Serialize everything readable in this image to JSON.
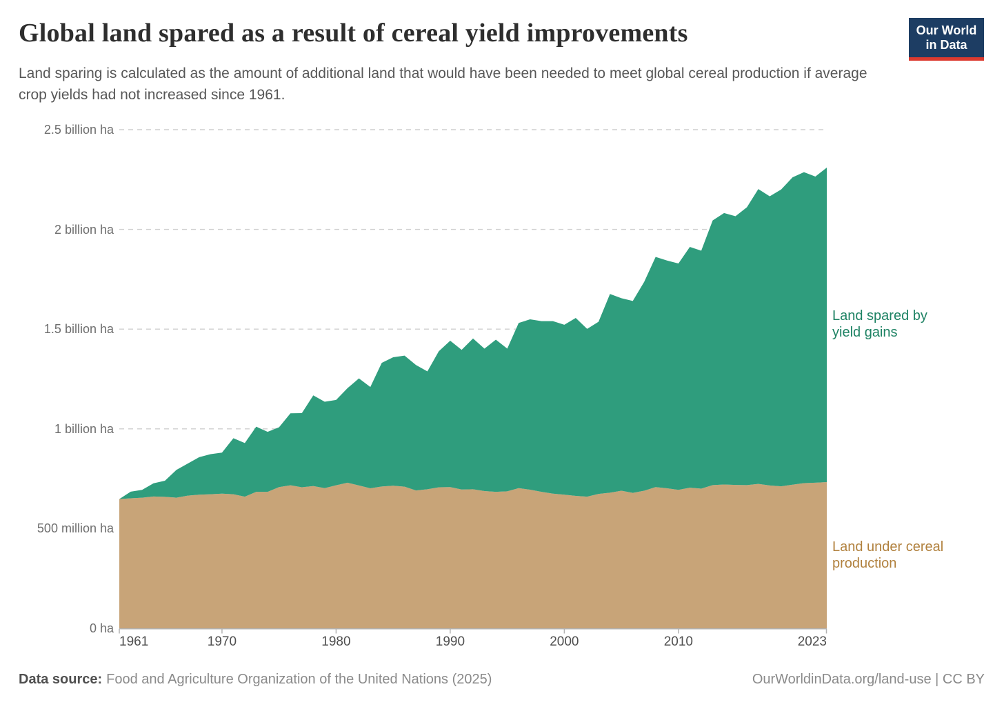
{
  "header": {
    "title": "Global land spared as a result of cereal yield improvements",
    "subtitle": "Land sparing is calculated as the amount of additional land that would have been needed to meet global cereal production if average crop yields had not increased since 1961."
  },
  "logo": {
    "line1": "Our World",
    "line2": "in Data",
    "bg_color": "#1d3d63",
    "bar_color": "#dc3a2f"
  },
  "chart_data": {
    "type": "area",
    "stacked": true,
    "title": "Global land spared as a result of cereal yield improvements",
    "xlabel": "",
    "ylabel": "",
    "unit": "million hectares",
    "ylim": [
      0,
      2500
    ],
    "xlim": [
      1961,
      2023
    ],
    "grid": "horizontal-dashed",
    "legend_position": "right-annotations",
    "x": [
      1961,
      1962,
      1963,
      1964,
      1965,
      1966,
      1967,
      1968,
      1969,
      1970,
      1971,
      1972,
      1973,
      1974,
      1975,
      1976,
      1977,
      1978,
      1979,
      1980,
      1981,
      1982,
      1983,
      1984,
      1985,
      1986,
      1987,
      1988,
      1989,
      1990,
      1991,
      1992,
      1993,
      1994,
      1995,
      1996,
      1997,
      1998,
      1999,
      2000,
      2001,
      2002,
      2003,
      2004,
      2005,
      2006,
      2007,
      2008,
      2009,
      2010,
      2011,
      2012,
      2013,
      2014,
      2015,
      2016,
      2017,
      2018,
      2019,
      2020,
      2021,
      2022,
      2023
    ],
    "series": [
      {
        "name": "Land under cereal production",
        "color": "#c8a478",
        "label_color": "#b1813e",
        "values": [
          648,
          652,
          655,
          661,
          659,
          655,
          665,
          670,
          672,
          675,
          672,
          660,
          684,
          684,
          708,
          717,
          707,
          713,
          703,
          717,
          730,
          716,
          702,
          711,
          715,
          710,
          691,
          697,
          707,
          708,
          696,
          697,
          688,
          684,
          687,
          703,
          695,
          684,
          675,
          670,
          664,
          660,
          674,
          680,
          690,
          679,
          690,
          708,
          702,
          694,
          705,
          700,
          718,
          721,
          719,
          718,
          724,
          716,
          712,
          720,
          728,
          730,
          733
        ]
      },
      {
        "name": "Land spared by yield gains",
        "color": "#2f9d7d",
        "label_color": "#1d8263",
        "values": [
          0,
          33,
          39,
          66,
          81,
          139,
          161,
          188,
          201,
          206,
          281,
          269,
          327,
          301,
          300,
          361,
          372,
          455,
          433,
          428,
          474,
          537,
          508,
          620,
          644,
          657,
          629,
          591,
          682,
          734,
          700,
          756,
          714,
          763,
          715,
          828,
          854,
          856,
          865,
          852,
          892,
          841,
          863,
          996,
          965,
          962,
          1047,
          1154,
          1142,
          1135,
          1207,
          1193,
          1327,
          1361,
          1347,
          1393,
          1478,
          1450,
          1488,
          1541,
          1559,
          1535,
          1577
        ]
      }
    ],
    "y_ticks": [
      {
        "value": 2500,
        "label": "2.5 billion ha"
      },
      {
        "value": 2000,
        "label": "2 billion ha"
      },
      {
        "value": 1500,
        "label": "1.5 billion ha"
      },
      {
        "value": 1000,
        "label": "1 billion ha"
      },
      {
        "value": 500,
        "label": "500 million ha"
      },
      {
        "value": 0,
        "label": "0 ha"
      }
    ],
    "x_ticks": [
      {
        "value": 1961,
        "label": "1961"
      },
      {
        "value": 1970,
        "label": "1970"
      },
      {
        "value": 1980,
        "label": "1980"
      },
      {
        "value": 1990,
        "label": "1990"
      },
      {
        "value": 2000,
        "label": "2000"
      },
      {
        "value": 2010,
        "label": "2010"
      },
      {
        "value": 2023,
        "label": "2023"
      }
    ]
  },
  "footer": {
    "source_label": "Data source:",
    "source_text": "Food and Agriculture Organization of the United Nations (2025)",
    "url_text": "OurWorldinData.org/land-use | CC BY"
  },
  "colors": {
    "gridline": "#cfcfcf",
    "axis": "#b3b3b3",
    "title_text": "#2e2e2e",
    "subtitle_text": "#575757"
  }
}
